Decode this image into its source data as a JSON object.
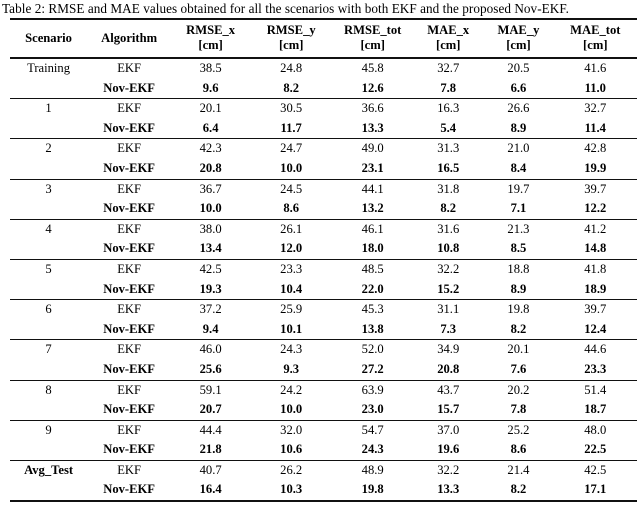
{
  "caption": "Table 2: RMSE and MAE values obtained for all the scenarios with both EKF and the proposed Nov-EKF.",
  "table": {
    "columns": [
      {
        "label": "Scenario",
        "unit": ""
      },
      {
        "label": "Algorithm",
        "unit": ""
      },
      {
        "label": "RMSE_x",
        "unit": "[cm]"
      },
      {
        "label": "RMSE_y",
        "unit": "[cm]"
      },
      {
        "label": "RMSE_tot",
        "unit": "[cm]"
      },
      {
        "label": "MAE_x",
        "unit": "[cm]"
      },
      {
        "label": "MAE_y",
        "unit": "[cm]"
      },
      {
        "label": "MAE_tot",
        "unit": "[cm]"
      }
    ],
    "groups": [
      {
        "scenario": "Training",
        "bold_scenario": false,
        "rows": [
          {
            "algorithm": "EKF",
            "bold": false,
            "values": [
              "38.5",
              "24.8",
              "45.8",
              "32.7",
              "20.5",
              "41.6"
            ]
          },
          {
            "algorithm": "Nov-EKF",
            "bold": true,
            "values": [
              "9.6",
              "8.2",
              "12.6",
              "7.8",
              "6.6",
              "11.0"
            ]
          }
        ]
      },
      {
        "scenario": "1",
        "bold_scenario": false,
        "rows": [
          {
            "algorithm": "EKF",
            "bold": false,
            "values": [
              "20.1",
              "30.5",
              "36.6",
              "16.3",
              "26.6",
              "32.7"
            ]
          },
          {
            "algorithm": "Nov-EKF",
            "bold": true,
            "values": [
              "6.4",
              "11.7",
              "13.3",
              "5.4",
              "8.9",
              "11.4"
            ]
          }
        ]
      },
      {
        "scenario": "2",
        "bold_scenario": false,
        "rows": [
          {
            "algorithm": "EKF",
            "bold": false,
            "values": [
              "42.3",
              "24.7",
              "49.0",
              "31.3",
              "21.0",
              "42.8"
            ]
          },
          {
            "algorithm": "Nov-EKF",
            "bold": true,
            "values": [
              "20.8",
              "10.0",
              "23.1",
              "16.5",
              "8.4",
              "19.9"
            ]
          }
        ]
      },
      {
        "scenario": "3",
        "bold_scenario": false,
        "rows": [
          {
            "algorithm": "EKF",
            "bold": false,
            "values": [
              "36.7",
              "24.5",
              "44.1",
              "31.8",
              "19.7",
              "39.7"
            ]
          },
          {
            "algorithm": "Nov-EKF",
            "bold": true,
            "values": [
              "10.0",
              "8.6",
              "13.2",
              "8.2",
              "7.1",
              "12.2"
            ]
          }
        ]
      },
      {
        "scenario": "4",
        "bold_scenario": false,
        "rows": [
          {
            "algorithm": "EKF",
            "bold": false,
            "values": [
              "38.0",
              "26.1",
              "46.1",
              "31.6",
              "21.3",
              "41.2"
            ]
          },
          {
            "algorithm": "Nov-EKF",
            "bold": true,
            "values": [
              "13.4",
              "12.0",
              "18.0",
              "10.8",
              "8.5",
              "14.8"
            ]
          }
        ]
      },
      {
        "scenario": "5",
        "bold_scenario": false,
        "rows": [
          {
            "algorithm": "EKF",
            "bold": false,
            "values": [
              "42.5",
              "23.3",
              "48.5",
              "32.2",
              "18.8",
              "41.8"
            ]
          },
          {
            "algorithm": "Nov-EKF",
            "bold": true,
            "values": [
              "19.3",
              "10.4",
              "22.0",
              "15.2",
              "8.9",
              "18.9"
            ]
          }
        ]
      },
      {
        "scenario": "6",
        "bold_scenario": false,
        "rows": [
          {
            "algorithm": "EKF",
            "bold": false,
            "values": [
              "37.2",
              "25.9",
              "45.3",
              "31.1",
              "19.8",
              "39.7"
            ]
          },
          {
            "algorithm": "Nov-EKF",
            "bold": true,
            "values": [
              "9.4",
              "10.1",
              "13.8",
              "7.3",
              "8.2",
              "12.4"
            ]
          }
        ]
      },
      {
        "scenario": "7",
        "bold_scenario": false,
        "rows": [
          {
            "algorithm": "EKF",
            "bold": false,
            "values": [
              "46.0",
              "24.3",
              "52.0",
              "34.9",
              "20.1",
              "44.6"
            ]
          },
          {
            "algorithm": "Nov-EKF",
            "bold": true,
            "values": [
              "25.6",
              "9.3",
              "27.2",
              "20.8",
              "7.6",
              "23.3"
            ]
          }
        ]
      },
      {
        "scenario": "8",
        "bold_scenario": false,
        "rows": [
          {
            "algorithm": "EKF",
            "bold": false,
            "values": [
              "59.1",
              "24.2",
              "63.9",
              "43.7",
              "20.2",
              "51.4"
            ]
          },
          {
            "algorithm": "Nov-EKF",
            "bold": true,
            "values": [
              "20.7",
              "10.0",
              "23.0",
              "15.7",
              "7.8",
              "18.7"
            ]
          }
        ]
      },
      {
        "scenario": "9",
        "bold_scenario": false,
        "rows": [
          {
            "algorithm": "EKF",
            "bold": false,
            "values": [
              "44.4",
              "32.0",
              "54.7",
              "37.0",
              "25.2",
              "48.0"
            ]
          },
          {
            "algorithm": "Nov-EKF",
            "bold": true,
            "values": [
              "21.8",
              "10.6",
              "24.3",
              "19.6",
              "8.6",
              "22.5"
            ]
          }
        ]
      },
      {
        "scenario": "Avg_Test",
        "bold_scenario": true,
        "rows": [
          {
            "algorithm": "EKF",
            "bold": false,
            "values": [
              "40.7",
              "26.2",
              "48.9",
              "32.2",
              "21.4",
              "42.5"
            ]
          },
          {
            "algorithm": "Nov-EKF",
            "bold": true,
            "values": [
              "16.4",
              "10.3",
              "19.8",
              "13.3",
              "8.2",
              "17.1"
            ]
          }
        ]
      }
    ],
    "column_widths": [
      "12.3%",
      "13.4%",
      "12.6%",
      "13.1%",
      "12.9%",
      "11.2%",
      "11.2%",
      "13.3%"
    ]
  }
}
